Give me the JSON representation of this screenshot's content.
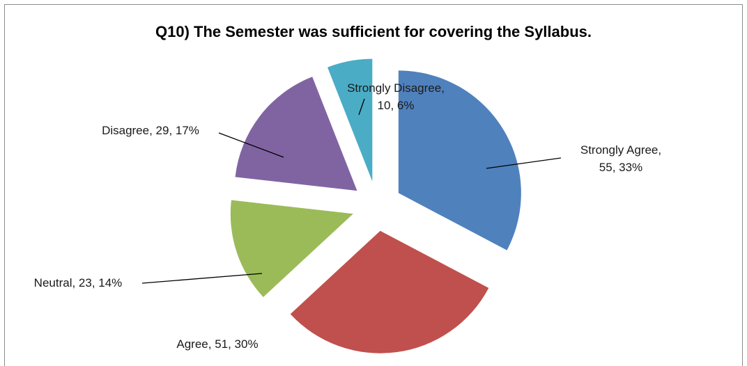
{
  "chart_data": {
    "type": "pie",
    "title": "Q10) The Semester was sufficient for covering the Syllabus.",
    "slices": [
      {
        "label": "Strongly Agree",
        "value": 55,
        "percent": "33%",
        "color": "#4f81bd",
        "text": [
          "Strongly Agree,",
          "55, 33%"
        ]
      },
      {
        "label": "Agree",
        "value": 51,
        "percent": "30%",
        "color": "#c0504d",
        "text": [
          "Agree, 51, 30%"
        ]
      },
      {
        "label": "Neutral",
        "value": 23,
        "percent": "14%",
        "color": "#9bbb59",
        "text": [
          "Neutral, 23, 14%"
        ]
      },
      {
        "label": "Disagree",
        "value": 29,
        "percent": "17%",
        "color": "#8064a2",
        "text": [
          "Disagree, 29, 17%"
        ]
      },
      {
        "label": "Strongly Disagree",
        "value": 10,
        "percent": "6%",
        "color": "#4bacc6",
        "text": [
          "Strongly Disagree,",
          "10, 6%"
        ]
      }
    ],
    "exploded": true,
    "legend": "none",
    "data_labels": "category, value, percent"
  }
}
